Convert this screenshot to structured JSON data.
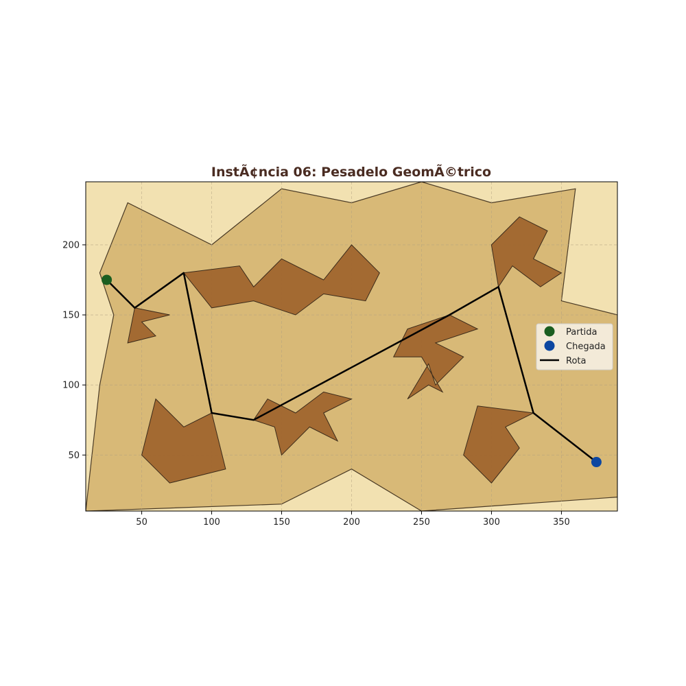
{
  "chart_data": {
    "type": "scatter",
    "title": "InstÃ¢ncia 06: Pesadelo GeomÃ©trico",
    "xlabel": "",
    "ylabel": "",
    "xlim": [
      10,
      390
    ],
    "ylim": [
      10,
      245
    ],
    "x_ticks": [
      50,
      100,
      150,
      200,
      250,
      300,
      350
    ],
    "y_ticks": [
      50,
      100,
      150,
      200
    ],
    "grid": true,
    "legend_position": "right",
    "colors": {
      "background": "#f2e1b1",
      "region": "#d8b977",
      "region_edge": "#4a3a25",
      "obstacle": "#a0652e",
      "obstacle_edge": "#3a2a1a",
      "route": "#000000",
      "start": "#1b5e20",
      "end": "#0d47a1",
      "title": "#4a2c22"
    },
    "region": [
      [
        10,
        10
      ],
      [
        150,
        15
      ],
      [
        200,
        40
      ],
      [
        250,
        10
      ],
      [
        390,
        20
      ],
      [
        390,
        150
      ],
      [
        350,
        160
      ],
      [
        360,
        240
      ],
      [
        300,
        230
      ],
      [
        250,
        245
      ],
      [
        200,
        230
      ],
      [
        150,
        240
      ],
      [
        100,
        200
      ],
      [
        40,
        230
      ],
      [
        20,
        180
      ],
      [
        30,
        150
      ],
      [
        20,
        100
      ],
      [
        10,
        10
      ]
    ],
    "obstacles": [
      [
        [
          80,
          180
        ],
        [
          120,
          185
        ],
        [
          130,
          170
        ],
        [
          150,
          190
        ],
        [
          180,
          175
        ],
        [
          200,
          200
        ],
        [
          220,
          180
        ],
        [
          210,
          160
        ],
        [
          180,
          165
        ],
        [
          160,
          150
        ],
        [
          130,
          160
        ],
        [
          100,
          155
        ]
      ],
      [
        [
          230,
          120
        ],
        [
          240,
          140
        ],
        [
          270,
          150
        ],
        [
          290,
          140
        ],
        [
          260,
          130
        ],
        [
          280,
          120
        ],
        [
          260,
          100
        ],
        [
          255,
          115
        ],
        [
          240,
          90
        ],
        [
          255,
          100
        ],
        [
          265,
          95
        ],
        [
          250,
          120
        ]
      ],
      [
        [
          50,
          50
        ],
        [
          60,
          90
        ],
        [
          80,
          70
        ],
        [
          100,
          80
        ],
        [
          110,
          40
        ],
        [
          70,
          30
        ]
      ],
      [
        [
          130,
          75
        ],
        [
          140,
          90
        ],
        [
          160,
          80
        ],
        [
          180,
          95
        ],
        [
          200,
          90
        ],
        [
          180,
          80
        ],
        [
          190,
          60
        ],
        [
          170,
          70
        ],
        [
          150,
          50
        ],
        [
          145,
          70
        ]
      ],
      [
        [
          280,
          50
        ],
        [
          290,
          85
        ],
        [
          330,
          80
        ],
        [
          310,
          70
        ],
        [
          320,
          55
        ],
        [
          300,
          30
        ]
      ],
      [
        [
          300,
          200
        ],
        [
          320,
          220
        ],
        [
          340,
          210
        ],
        [
          330,
          190
        ],
        [
          350,
          180
        ],
        [
          335,
          170
        ],
        [
          315,
          185
        ],
        [
          305,
          170
        ]
      ],
      [
        [
          45,
          155
        ],
        [
          70,
          150
        ],
        [
          50,
          145
        ],
        [
          60,
          135
        ],
        [
          40,
          130
        ]
      ]
    ],
    "route": {
      "name": "Rota",
      "points": [
        [
          25,
          175
        ],
        [
          45,
          155
        ],
        [
          80,
          180
        ],
        [
          100,
          80
        ],
        [
          130,
          75
        ],
        [
          270,
          150
        ],
        [
          305,
          170
        ],
        [
          330,
          80
        ],
        [
          375,
          45
        ]
      ]
    },
    "start": {
      "name": "Partida",
      "point": [
        25,
        175
      ]
    },
    "end": {
      "name": "Chegada",
      "point": [
        375,
        45
      ]
    },
    "legend": [
      "Partida",
      "Chegada",
      "Rota"
    ]
  }
}
